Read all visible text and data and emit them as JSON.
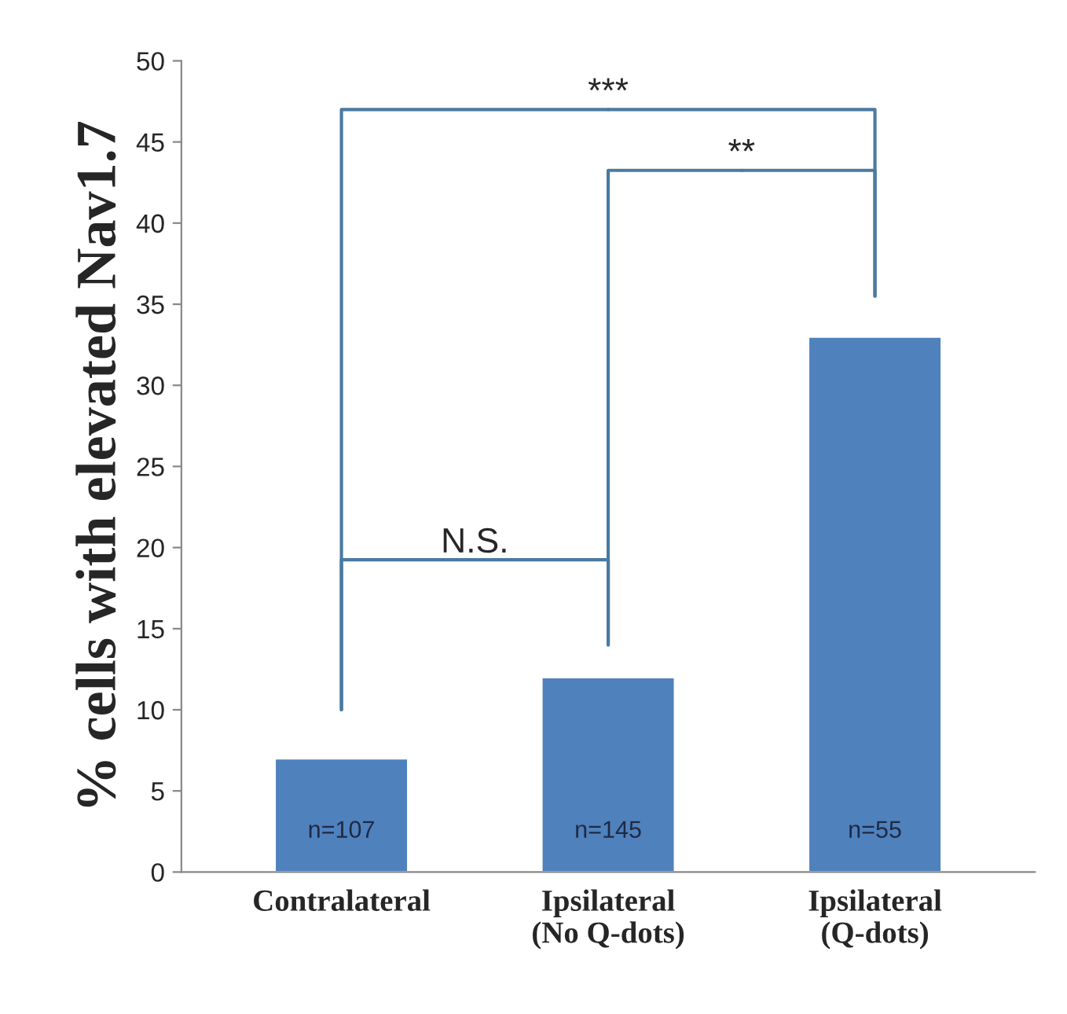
{
  "chart_data": {
    "type": "bar",
    "categories": [
      "Contralateral",
      "Ipsilateral\n(No Q-dots)",
      "Ipsilateral\n(Q-dots)"
    ],
    "values": [
      7,
      12,
      33
    ],
    "color": "#4f81bd",
    "ylabel": "% cells with elevated Nav1.7",
    "ylim": [
      0,
      50
    ],
    "yticks": [
      0,
      5,
      10,
      15,
      20,
      25,
      30,
      35,
      40,
      45,
      50
    ],
    "annotations": [
      "N.S.",
      "**",
      "***",
      "n=107",
      "n=145",
      "n=55"
    ],
    "grid": false
  }
}
